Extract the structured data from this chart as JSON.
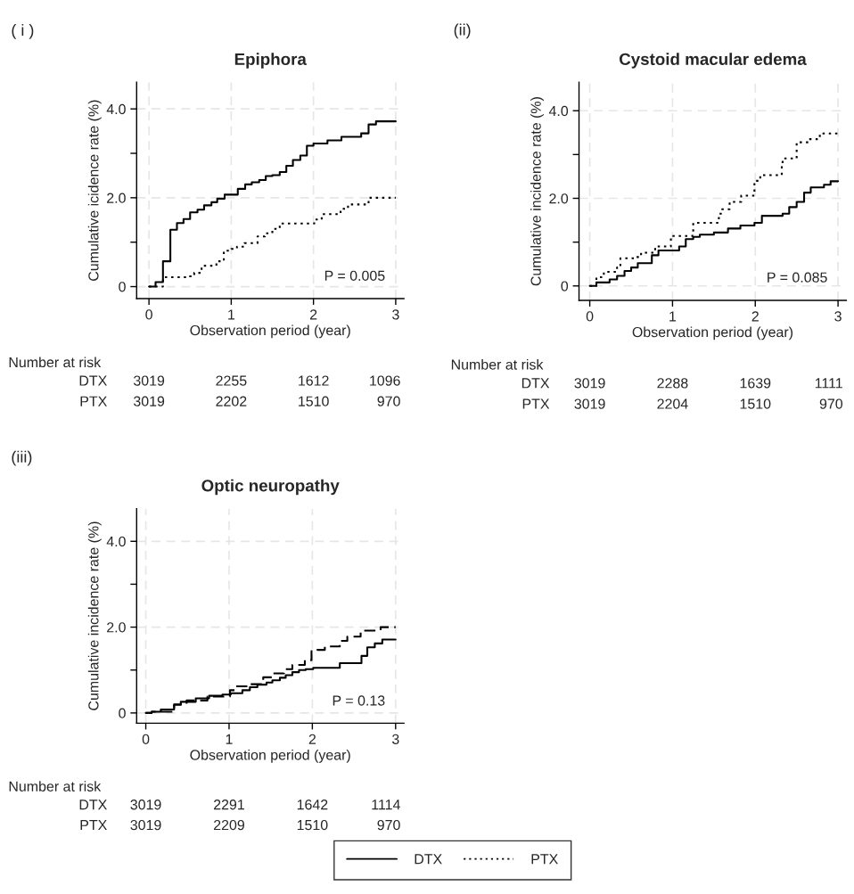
{
  "chart_data": [
    {
      "type": "step",
      "title": "Epiphora",
      "xlabel": "Observation period (year)",
      "ylabel": "Cumulative icidence rate (%)",
      "xlim": [
        -0.15,
        3.1
      ],
      "xticks": [
        0,
        1,
        2,
        3
      ],
      "ylim": [
        -0.27,
        4.6
      ],
      "yticks": [
        0,
        {
          "value": 1,
          "label": null
        },
        {
          "value": 2,
          "label": "2.0"
        },
        {
          "value": 3,
          "label": null
        },
        {
          "value": 4,
          "label": "4.0"
        }
      ],
      "grid": true,
      "legend": "bottom",
      "series": [
        {
          "name": "DTX",
          "color": "#000000",
          "line_style": "solid",
          "x": [
            0,
            0.08,
            0.17,
            0.26,
            0.34,
            0.42,
            0.5,
            0.59,
            0.67,
            0.76,
            0.83,
            0.92,
            1.08,
            1.17,
            1.25,
            1.34,
            1.42,
            1.5,
            1.59,
            1.67,
            1.75,
            1.84,
            1.92,
            2.0,
            2.17,
            2.34,
            2.58,
            2.67,
            2.76,
            3.0
          ],
          "values": [
            0,
            0.1,
            0.57,
            1.28,
            1.43,
            1.52,
            1.67,
            1.73,
            1.83,
            1.9,
            1.98,
            2.07,
            2.2,
            2.3,
            2.35,
            2.4,
            2.49,
            2.51,
            2.58,
            2.72,
            2.85,
            2.95,
            3.17,
            3.22,
            3.29,
            3.37,
            3.45,
            3.65,
            3.72,
            3.72
          ]
        },
        {
          "name": "PTX",
          "color": "#000000",
          "line_style": "dotted",
          "x": [
            0,
            0.17,
            0.46,
            0.55,
            0.64,
            0.82,
            0.91,
            1.0,
            1.07,
            1.16,
            1.32,
            1.41,
            1.5,
            1.59,
            2.01,
            2.1,
            2.33,
            2.42,
            2.67,
            3.0
          ],
          "values": [
            0,
            0.21,
            0.23,
            0.31,
            0.47,
            0.57,
            0.81,
            0.85,
            0.9,
            0.98,
            1.13,
            1.2,
            1.3,
            1.42,
            1.51,
            1.63,
            1.75,
            1.85,
            2.0,
            2.0
          ]
        }
      ],
      "annotations": [
        "( i )",
        "P = 0.005",
        "Number at risk",
        "DTX",
        "3019",
        "2255",
        "1612",
        "1096",
        "PTX",
        "3019",
        "2202",
        "1510",
        "970"
      ]
    },
    {
      "type": "step",
      "title": "Cystoid macular edema",
      "xlabel": "Observation period (year)",
      "ylabel": "Cumulative incidence rate (%)",
      "xlim": [
        -0.13,
        3.1
      ],
      "xticks": [
        0,
        1,
        2,
        3
      ],
      "ylim": [
        -0.33,
        4.65
      ],
      "yticks": [
        0,
        {
          "value": 1,
          "label": null
        },
        {
          "value": 2,
          "label": "2.0"
        },
        {
          "value": 3,
          "label": null
        },
        {
          "value": 4,
          "label": "4.0"
        }
      ],
      "grid": true,
      "legend": false,
      "series": [
        {
          "color": "#000000",
          "line_style": "solid",
          "x": [
            0,
            0.08,
            0.24,
            0.33,
            0.42,
            0.5,
            0.58,
            0.75,
            0.83,
            1.08,
            1.16,
            1.25,
            1.33,
            1.5,
            1.67,
            1.82,
            1.99,
            2.08,
            2.33,
            2.41,
            2.5,
            2.59,
            2.67,
            2.83,
            2.91,
            3.0
          ],
          "values": [
            0,
            0.08,
            0.15,
            0.23,
            0.34,
            0.42,
            0.52,
            0.7,
            0.81,
            0.9,
            1.07,
            1.12,
            1.17,
            1.22,
            1.31,
            1.38,
            1.44,
            1.6,
            1.65,
            1.8,
            1.92,
            2.13,
            2.25,
            2.31,
            2.39,
            2.39
          ]
        },
        {
          "color": "#000000",
          "line_style": "dotted",
          "x": [
            0,
            0.08,
            0.17,
            0.33,
            0.37,
            0.55,
            0.62,
            0.79,
            0.98,
            1.24,
            1.25,
            1.56,
            1.6,
            1.69,
            1.83,
            1.99,
            2.06,
            2.32,
            2.33,
            2.5,
            2.64,
            2.78,
            3.0
          ],
          "values": [
            0,
            0.2,
            0.32,
            0.42,
            0.63,
            0.66,
            0.76,
            0.9,
            1.14,
            1.24,
            1.44,
            1.65,
            1.75,
            1.92,
            2.06,
            2.4,
            2.53,
            2.74,
            2.91,
            3.28,
            3.35,
            3.48,
            3.48
          ]
        }
      ],
      "annotations": [
        "(ii)",
        "P = 0.085",
        "Number at risk",
        "DTX",
        "3019",
        "2288",
        "1639",
        "1111",
        "PTX",
        "3019",
        "2204",
        "1510",
        "970"
      ]
    },
    {
      "type": "step",
      "title": "Optic neuropathy",
      "xlabel": "Observation period (year)",
      "ylabel": "Cumulative incidence rate (%)",
      "xlim": [
        -0.11,
        3.1
      ],
      "xticks": [
        0,
        1,
        2,
        3
      ],
      "ylim": [
        -0.24,
        4.76
      ],
      "yticks": [
        0,
        {
          "value": 1,
          "label": null
        },
        {
          "value": 2,
          "label": "2.0"
        },
        {
          "value": 3,
          "label": null
        },
        {
          "value": 4,
          "label": "4.0"
        }
      ],
      "grid": true,
      "legend": false,
      "series": [
        {
          "color": "#000000",
          "line_style": "solid",
          "x": [
            0,
            0.07,
            0.18,
            0.34,
            0.42,
            0.6,
            0.76,
            0.92,
            1.02,
            1.16,
            1.25,
            1.34,
            1.45,
            1.52,
            1.61,
            1.68,
            1.76,
            1.84,
            1.92,
            2.01,
            2.33,
            2.59,
            2.66,
            2.75,
            2.84,
            3.0
          ],
          "values": [
            0,
            0.03,
            0.08,
            0.19,
            0.26,
            0.34,
            0.4,
            0.43,
            0.46,
            0.53,
            0.6,
            0.66,
            0.71,
            0.76,
            0.82,
            0.88,
            0.95,
            1.0,
            1.02,
            1.05,
            1.16,
            1.33,
            1.53,
            1.62,
            1.71,
            1.71
          ]
        },
        {
          "color": "#000000",
          "line_style": "dashed",
          "x": [
            0,
            0.07,
            0.34,
            0.49,
            0.74,
            1.01,
            1.08,
            1.24,
            1.41,
            1.52,
            1.66,
            1.76,
            1.91,
            1.99,
            2.06,
            2.15,
            2.33,
            2.42,
            2.58,
            2.82,
            3.0
          ],
          "values": [
            0,
            0.03,
            0.2,
            0.29,
            0.38,
            0.53,
            0.62,
            0.67,
            0.83,
            0.92,
            1.02,
            1.12,
            1.23,
            1.44,
            1.47,
            1.55,
            1.68,
            1.78,
            1.92,
            2.0,
            2.0
          ]
        }
      ],
      "annotations": [
        "(iii)",
        "P = 0.13",
        "Number at risk",
        "DTX",
        "3019",
        "2291",
        "1642",
        "1114",
        "PTX",
        "3019",
        "2209",
        "1510",
        "970"
      ]
    }
  ]
}
